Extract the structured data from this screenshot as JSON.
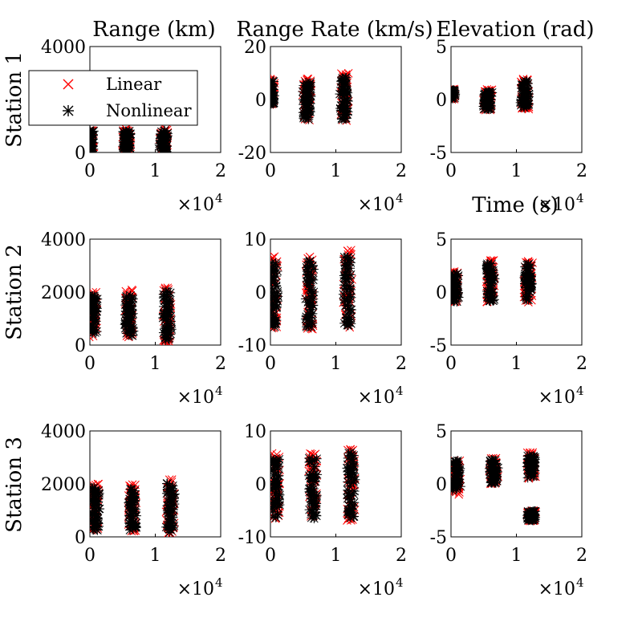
{
  "figure": {
    "row_labels": [
      "Station 1",
      "Station 2",
      "Station 3"
    ],
    "col_titles": [
      "Range (km)",
      "Range Rate (km/s)",
      "Elevation (rad)"
    ],
    "x_axis_shared_label": "Time (s)",
    "x_multiplier": "×10",
    "x_multiplier_exp": "4",
    "legend": {
      "entries": [
        {
          "label": "Linear",
          "marker": "x",
          "color": "#ff0000"
        },
        {
          "label": "Nonlinear",
          "marker": "asterisk",
          "color": "#000000"
        }
      ]
    }
  },
  "chart_data": [
    {
      "type": "scatter",
      "row": 0,
      "col": 0,
      "title": "Range (km)",
      "ylabel": "Station 1",
      "xlabel": "",
      "xlim": [
        0,
        20000
      ],
      "ylim": [
        0,
        4000
      ],
      "xticks": [
        "0",
        "1",
        "2"
      ],
      "yticks": [
        "0",
        "4000"
      ],
      "ytick_values": [
        0,
        4000
      ],
      "clusters": [
        {
          "x_center": 0,
          "y_range": [
            0,
            900
          ]
        },
        {
          "x_center": 5600,
          "y_range": [
            0,
            900
          ]
        },
        {
          "x_center": 11300,
          "y_range": [
            0,
            900
          ]
        }
      ]
    },
    {
      "type": "scatter",
      "row": 0,
      "col": 1,
      "title": "Range Rate (km/s)",
      "xlim": [
        0,
        20000
      ],
      "ylim": [
        -20,
        20
      ],
      "xticks": [
        "0",
        "1",
        "2"
      ],
      "yticks": [
        "-20",
        "0",
        "20"
      ],
      "ytick_values": [
        -20,
        0,
        20
      ],
      "clusters": [
        {
          "x_center": 0,
          "y_range": [
            -2,
            8
          ]
        },
        {
          "x_center": 5600,
          "y_range": [
            -8,
            8
          ]
        },
        {
          "x_center": 11300,
          "y_range": [
            -8,
            10
          ]
        }
      ]
    },
    {
      "type": "scatter",
      "row": 0,
      "col": 2,
      "title": "Elevation (rad)",
      "xlim": [
        0,
        20000
      ],
      "ylim": [
        -5,
        5
      ],
      "xticks": [
        "0",
        "1",
        "2"
      ],
      "yticks": [
        "-5",
        "0",
        "5"
      ],
      "ytick_values": [
        -5,
        0,
        5
      ],
      "clusters": [
        {
          "x_center": 0,
          "y_range": [
            0,
            1
          ]
        },
        {
          "x_center": 5600,
          "y_range": [
            -1,
            1
          ]
        },
        {
          "x_center": 11300,
          "y_range": [
            -1,
            2
          ]
        }
      ]
    },
    {
      "type": "scatter",
      "row": 1,
      "col": 0,
      "ylabel": "Station 2",
      "xlim": [
        0,
        20000
      ],
      "ylim": [
        0,
        4000
      ],
      "xticks": [
        "0",
        "1",
        "2"
      ],
      "yticks": [
        "0",
        "2000",
        "4000"
      ],
      "ytick_values": [
        0,
        2000,
        4000
      ],
      "clusters": [
        {
          "x_center": 500,
          "y_range": [
            300,
            2000
          ]
        },
        {
          "x_center": 6000,
          "y_range": [
            300,
            2100
          ]
        },
        {
          "x_center": 11800,
          "y_range": [
            100,
            2200
          ]
        }
      ]
    },
    {
      "type": "scatter",
      "row": 1,
      "col": 1,
      "xlim": [
        0,
        20000
      ],
      "ylim": [
        -10,
        10
      ],
      "xticks": [
        "0",
        "1",
        "2"
      ],
      "yticks": [
        "-10",
        "0",
        "10"
      ],
      "ytick_values": [
        -10,
        0,
        10
      ],
      "clusters": [
        {
          "x_center": 500,
          "y_range": [
            -7,
            7
          ]
        },
        {
          "x_center": 6000,
          "y_range": [
            -7,
            7
          ]
        },
        {
          "x_center": 11800,
          "y_range": [
            -7,
            8
          ]
        }
      ]
    },
    {
      "type": "scatter",
      "row": 1,
      "col": 2,
      "xlim": [
        0,
        20000
      ],
      "ylim": [
        -5,
        5
      ],
      "xticks": [
        "0",
        "1",
        "2"
      ],
      "yticks": [
        "-5",
        "0",
        "5"
      ],
      "ytick_values": [
        -5,
        0,
        5
      ],
      "clusters": [
        {
          "x_center": 500,
          "y_range": [
            -1,
            2
          ]
        },
        {
          "x_center": 6000,
          "y_range": [
            -1,
            3
          ]
        },
        {
          "x_center": 11800,
          "y_range": [
            -1,
            3
          ]
        }
      ]
    },
    {
      "type": "scatter",
      "row": 2,
      "col": 0,
      "ylabel": "Station 3",
      "xlim": [
        0,
        20000
      ],
      "ylim": [
        0,
        4000
      ],
      "xticks": [
        "0",
        "1",
        "2"
      ],
      "yticks": [
        "0",
        "2000",
        "4000"
      ],
      "ytick_values": [
        0,
        2000,
        4000
      ],
      "clusters": [
        {
          "x_center": 800,
          "y_range": [
            200,
            2000
          ]
        },
        {
          "x_center": 6500,
          "y_range": [
            200,
            2000
          ]
        },
        {
          "x_center": 12300,
          "y_range": [
            100,
            2200
          ]
        }
      ]
    },
    {
      "type": "scatter",
      "row": 2,
      "col": 1,
      "xlim": [
        0,
        20000
      ],
      "ylim": [
        -10,
        10
      ],
      "xticks": [
        "0",
        "1",
        "2"
      ],
      "yticks": [
        "-10",
        "0",
        "10"
      ],
      "ytick_values": [
        -10,
        0,
        10
      ],
      "clusters": [
        {
          "x_center": 800,
          "y_range": [
            -7,
            6
          ]
        },
        {
          "x_center": 6500,
          "y_range": [
            -7,
            6
          ]
        },
        {
          "x_center": 12300,
          "y_range": [
            -7,
            7
          ]
        }
      ]
    },
    {
      "type": "scatter",
      "row": 2,
      "col": 2,
      "xlim": [
        0,
        20000
      ],
      "ylim": [
        -5,
        5
      ],
      "xticks": [
        "0",
        "1",
        "2"
      ],
      "yticks": [
        "-5",
        "0",
        "5"
      ],
      "ytick_values": [
        -5,
        0,
        5
      ],
      "clusters": [
        {
          "x_center": 800,
          "y_range": [
            -1,
            2.5
          ]
        },
        {
          "x_center": 6500,
          "y_range": [
            0,
            2.5
          ]
        },
        {
          "x_center": 12300,
          "y_range": [
            0.5,
            3
          ]
        },
        {
          "x_center": 12300,
          "y_range": [
            -3.5,
            -2.5
          ]
        }
      ]
    }
  ]
}
